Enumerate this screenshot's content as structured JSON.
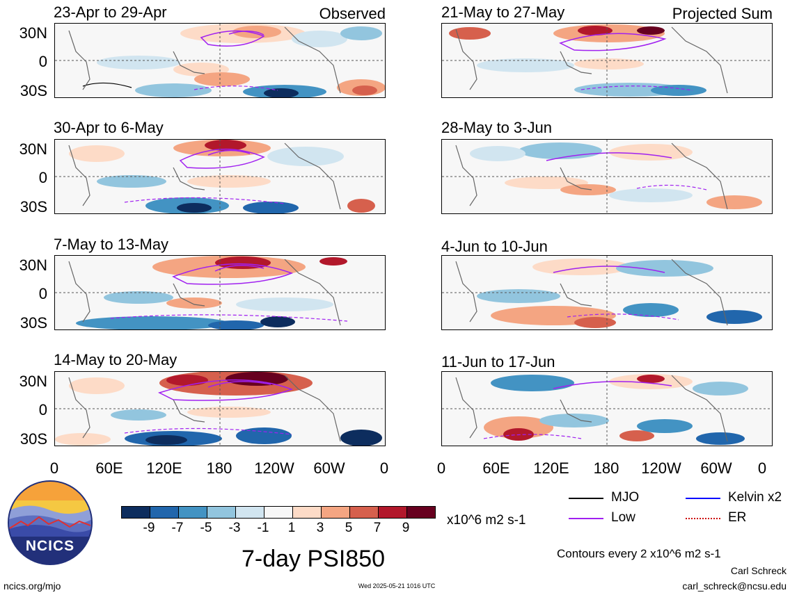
{
  "panels": [
    {
      "title": "23-Apr to 29-Apr",
      "corner": "Observed"
    },
    {
      "title": "30-Apr to 6-May",
      "corner": ""
    },
    {
      "title": "7-May to 13-May",
      "corner": ""
    },
    {
      "title": "14-May to 20-May",
      "corner": ""
    },
    {
      "title": "21-May to 27-May",
      "corner": "Projected Sum"
    },
    {
      "title": "28-May to 3-Jun",
      "corner": ""
    },
    {
      "title": "4-Jun to 10-Jun",
      "corner": ""
    },
    {
      "title": "11-Jun to 17-Jun",
      "corner": ""
    }
  ],
  "lat_labels": [
    "30N",
    "0",
    "30S"
  ],
  "lon_labels": [
    "0",
    "60E",
    "120E",
    "180",
    "120W",
    "60W",
    "0"
  ],
  "colorbar": {
    "colors": [
      "#0d2d5e",
      "#2166ac",
      "#4393c3",
      "#92c5de",
      "#d1e5f0",
      "#f7f7f7",
      "#fddbc7",
      "#f4a582",
      "#d6604d",
      "#b2182b",
      "#67001f"
    ],
    "ticks": [
      "-9",
      "-7",
      "-5",
      "-3",
      "-1",
      "1",
      "3",
      "5",
      "7",
      "9"
    ],
    "units": "x10^6 m2 s-1"
  },
  "legend": {
    "items": [
      {
        "label": "MJO",
        "color": "#000000"
      },
      {
        "label": "Kelvin x2",
        "color": "#0000ff"
      },
      {
        "label": "Low",
        "color": "#a020f0"
      },
      {
        "label": "ER",
        "color": "#cc0000"
      }
    ],
    "contour_note": "Contours every 2 x10^6 m2 s-1"
  },
  "main_title": "7-day PSI850",
  "logo_text": "NCICS",
  "footer": {
    "site": "ncics.org/mjo",
    "timestamp": "Wed 2025-05-21 1016 UTC",
    "author": "Carl Schreck",
    "email": "carl_schreck@ncsu.edu"
  }
}
